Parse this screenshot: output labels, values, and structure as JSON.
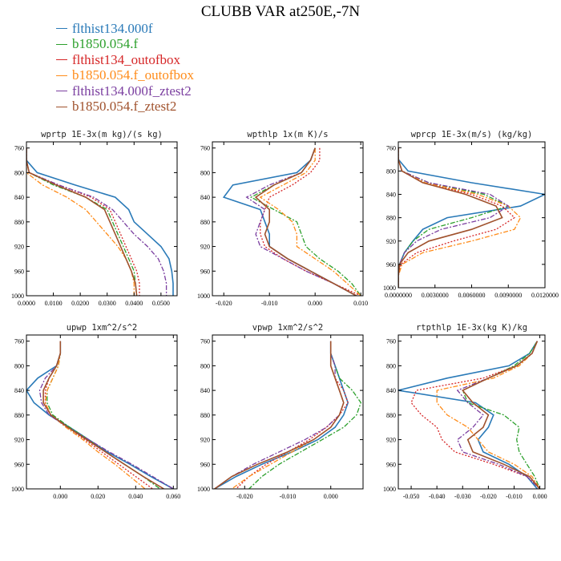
{
  "title": "CLUBB VAR at250E,-7N",
  "legend": [
    {
      "name": "flthist134.000f",
      "color": "#2a7ab8",
      "dash": "solid"
    },
    {
      "name": "b1850.054.f",
      "color": "#2ca02c",
      "dash": "solid"
    },
    {
      "name": "flthist134_outofbox",
      "color": "#d62728",
      "dash": "solid"
    },
    {
      "name": "b1850.054.f_outofbox",
      "color": "#ff8c1a",
      "dash": "solid"
    },
    {
      "name": "flthist134.000f_ztest2",
      "color": "#7b3fa0",
      "dash": "solid"
    },
    {
      "name": "b1850.054.f_ztest2",
      "color": "#a0522d",
      "dash": "solid"
    }
  ],
  "series_styles": [
    {
      "color": "#2a7ab8",
      "dash": "",
      "width": 1.6
    },
    {
      "color": "#2ca02c",
      "dash": "6,2,2,2",
      "width": 1.3
    },
    {
      "color": "#d62728",
      "dash": "2,2",
      "width": 1.3
    },
    {
      "color": "#ff8c1a",
      "dash": "6,2,2,2",
      "width": 1.3
    },
    {
      "color": "#7b3fa0",
      "dash": "6,2,2,2",
      "width": 1.3
    },
    {
      "color": "#a0522d",
      "dash": "",
      "width": 1.6
    }
  ],
  "chart_data": [
    {
      "type": "line",
      "title": "wprtp  1E-3x(m kg)/(s kg)",
      "xlim": [
        0,
        0.056
      ],
      "ylim": [
        1000,
        750
      ],
      "xticks": [
        0,
        0.01,
        0.02,
        0.03,
        0.04,
        0.05
      ],
      "xtick_labels": [
        "0.0000",
        "0.0100",
        "0.0200",
        "0.0300",
        "0.0400",
        "0.0500"
      ],
      "yticks": [
        760,
        800,
        840,
        880,
        920,
        960,
        1000
      ],
      "y": [
        760,
        780,
        800,
        820,
        840,
        860,
        880,
        900,
        920,
        940,
        960,
        980,
        1000
      ],
      "series": [
        {
          "values": [
            0,
            0,
            0.004,
            0.018,
            0.033,
            0.038,
            0.04,
            0.045,
            0.05,
            0.053,
            0.054,
            0.0545,
            0.0545
          ]
        },
        {
          "values": [
            0,
            0,
            0.001,
            0.01,
            0.022,
            0.03,
            0.032,
            0.034,
            0.036,
            0.038,
            0.04,
            0.0405,
            0.041
          ]
        },
        {
          "values": [
            0,
            0,
            0.001,
            0.012,
            0.024,
            0.031,
            0.033,
            0.035,
            0.037,
            0.039,
            0.041,
            0.042,
            0.042
          ]
        },
        {
          "values": [
            0,
            0,
            0.0,
            0.006,
            0.015,
            0.022,
            0.026,
            0.03,
            0.034,
            0.037,
            0.039,
            0.04,
            0.04
          ]
        },
        {
          "values": [
            0,
            0,
            0.001,
            0.012,
            0.025,
            0.032,
            0.036,
            0.04,
            0.045,
            0.049,
            0.051,
            0.052,
            0.052
          ]
        },
        {
          "values": [
            0,
            0,
            0.001,
            0.011,
            0.022,
            0.029,
            0.031,
            0.033,
            0.035,
            0.037,
            0.039,
            0.0405,
            0.041
          ]
        }
      ]
    },
    {
      "type": "line",
      "title": "wpthlp  1x(m K)/s",
      "xlim": [
        -0.0225,
        0.0105
      ],
      "ylim": [
        1000,
        750
      ],
      "xticks": [
        -0.02,
        -0.01,
        0.0,
        0.01
      ],
      "xtick_labels": [
        "-0.020",
        "-0.010",
        "0.000",
        "0.010"
      ],
      "yticks": [
        760,
        800,
        840,
        880,
        920,
        960,
        1000
      ],
      "y": [
        760,
        780,
        800,
        820,
        840,
        860,
        880,
        900,
        920,
        940,
        960,
        980,
        1000
      ],
      "series": [
        {
          "values": [
            0.0,
            -0.001,
            -0.004,
            -0.018,
            -0.02,
            -0.012,
            -0.011,
            -0.01,
            -0.01,
            -0.006,
            -0.001,
            0.004,
            0.009
          ]
        },
        {
          "values": [
            0.0,
            -0.001,
            -0.003,
            -0.009,
            -0.014,
            -0.009,
            -0.004,
            -0.003,
            -0.002,
            0.001,
            0.005,
            0.008,
            0.01
          ]
        },
        {
          "values": [
            0.001,
            0.001,
            -0.001,
            -0.005,
            -0.01,
            -0.011,
            -0.012,
            -0.012,
            -0.011,
            -0.007,
            -0.002,
            0.004,
            0.01
          ]
        },
        {
          "values": [
            0.0,
            0.0,
            -0.002,
            -0.007,
            -0.012,
            -0.008,
            -0.005,
            -0.004,
            -0.004,
            0.0,
            0.004,
            0.007,
            0.01
          ]
        },
        {
          "values": [
            0.0,
            -0.001,
            -0.003,
            -0.01,
            -0.015,
            -0.011,
            -0.012,
            -0.013,
            -0.012,
            -0.007,
            -0.002,
            0.004,
            0.009
          ]
        },
        {
          "values": [
            0.0,
            -0.001,
            -0.003,
            -0.009,
            -0.013,
            -0.01,
            -0.01,
            -0.011,
            -0.01,
            -0.006,
            -0.001,
            0.004,
            0.009
          ]
        }
      ]
    },
    {
      "type": "line",
      "title": "wprcp  1E-3x(m/s) (kg/kg)",
      "xlim": [
        0,
        0.012
      ],
      "ylim": [
        1000,
        750
      ],
      "xticks": [
        0,
        0.003,
        0.006,
        0.009,
        0.012
      ],
      "xtick_labels": [
        "0.0000000",
        "0.0030000",
        "0.0060000",
        "0.0090000",
        "0.0120000"
      ],
      "yticks": [
        760,
        800,
        840,
        880,
        920,
        960,
        1000
      ],
      "y": [
        760,
        780,
        800,
        820,
        840,
        860,
        880,
        900,
        920,
        940,
        960,
        980,
        1000
      ],
      "series": [
        {
          "values": [
            0,
            0.0,
            0.0008,
            0.006,
            0.012,
            0.01,
            0.004,
            0.002,
            0.0012,
            0.0005,
            0.0001,
            0,
            0
          ]
        },
        {
          "values": [
            0,
            0.0,
            0.0003,
            0.0025,
            0.007,
            0.009,
            0.006,
            0.0025,
            0.0012,
            0.0005,
            0.0001,
            0,
            0
          ]
        },
        {
          "values": [
            0,
            0.0,
            0.0003,
            0.002,
            0.006,
            0.0085,
            0.0095,
            0.008,
            0.0045,
            0.0015,
            0.0002,
            0,
            0
          ]
        },
        {
          "values": [
            0,
            0.0,
            0.0003,
            0.0022,
            0.0065,
            0.009,
            0.01,
            0.0095,
            0.006,
            0.002,
            0.0003,
            0,
            0
          ]
        },
        {
          "values": [
            0,
            0.0,
            0.0003,
            0.0025,
            0.0075,
            0.009,
            0.0075,
            0.0035,
            0.0015,
            0.0005,
            0.0001,
            0,
            0
          ]
        },
        {
          "values": [
            0,
            0.0,
            0.0003,
            0.002,
            0.0055,
            0.008,
            0.0085,
            0.006,
            0.0025,
            0.0008,
            0.0001,
            0,
            0
          ]
        }
      ]
    },
    {
      "type": "line",
      "title": "upwp  1xm^2/s^2",
      "xlim": [
        -0.018,
        0.062
      ],
      "ylim": [
        1000,
        750
      ],
      "xticks": [
        0,
        0.02,
        0.04,
        0.06
      ],
      "xtick_labels": [
        "0.000",
        "0.020",
        "0.040",
        "0.060"
      ],
      "yticks": [
        760,
        800,
        840,
        880,
        920,
        960,
        1000
      ],
      "y": [
        760,
        780,
        800,
        820,
        840,
        860,
        880,
        900,
        920,
        940,
        960,
        980,
        1000
      ],
      "series": [
        {
          "values": [
            0.0,
            0.0,
            -0.002,
            -0.012,
            -0.018,
            -0.014,
            -0.006,
            0.005,
            0.015,
            0.025,
            0.037,
            0.048,
            0.06
          ]
        },
        {
          "values": [
            0.0,
            0.0,
            -0.001,
            -0.004,
            -0.007,
            -0.007,
            -0.004,
            0.005,
            0.015,
            0.024,
            0.034,
            0.044,
            0.053
          ]
        },
        {
          "values": [
            0.0,
            0.0,
            -0.002,
            -0.006,
            -0.008,
            -0.008,
            -0.005,
            0.004,
            0.013,
            0.022,
            0.031,
            0.04,
            0.049
          ]
        },
        {
          "values": [
            0.0,
            0.0,
            -0.001,
            -0.004,
            -0.007,
            -0.008,
            -0.005,
            0.003,
            0.012,
            0.02,
            0.029,
            0.037,
            0.045
          ]
        },
        {
          "values": [
            0.0,
            0.0,
            -0.002,
            -0.008,
            -0.011,
            -0.01,
            -0.006,
            0.004,
            0.015,
            0.026,
            0.038,
            0.049,
            0.06
          ]
        },
        {
          "values": [
            0.0,
            0.0,
            -0.002,
            -0.006,
            -0.009,
            -0.009,
            -0.005,
            0.004,
            0.014,
            0.024,
            0.034,
            0.044,
            0.055
          ]
        }
      ]
    },
    {
      "type": "line",
      "title": "vpwp  1xm^2/s^2",
      "xlim": [
        -0.0275,
        0.0075
      ],
      "ylim": [
        1000,
        750
      ],
      "xticks": [
        -0.02,
        -0.01,
        0.0
      ],
      "xtick_labels": [
        "-0.020",
        "-0.010",
        "0.000"
      ],
      "yticks": [
        760,
        800,
        840,
        880,
        920,
        960,
        1000
      ],
      "y": [
        760,
        780,
        800,
        820,
        840,
        860,
        880,
        900,
        920,
        940,
        960,
        980,
        1000
      ],
      "series": [
        {
          "values": [
            0.0,
            0.0,
            0.001,
            0.002,
            0.003,
            0.004,
            0.003,
            0.001,
            -0.003,
            -0.009,
            -0.016,
            -0.022,
            -0.027
          ]
        },
        {
          "values": [
            0.0,
            0.0,
            0.001,
            0.002,
            0.005,
            0.007,
            0.006,
            0.003,
            -0.002,
            -0.007,
            -0.012,
            -0.016,
            -0.019
          ]
        },
        {
          "values": [
            0.0,
            0.0,
            0.0,
            0.001,
            0.003,
            0.004,
            0.002,
            -0.001,
            -0.005,
            -0.01,
            -0.015,
            -0.019,
            -0.022
          ]
        },
        {
          "values": [
            0.0,
            0.0,
            0.0,
            0.001,
            0.002,
            0.003,
            0.002,
            0.0,
            -0.004,
            -0.009,
            -0.014,
            -0.019,
            -0.023
          ]
        },
        {
          "values": [
            0.0,
            0.0,
            0.001,
            0.001,
            0.002,
            0.003,
            0.002,
            -0.001,
            -0.006,
            -0.012,
            -0.018,
            -0.023,
            -0.027
          ]
        },
        {
          "values": [
            0.0,
            0.0,
            0.0,
            0.001,
            0.002,
            0.003,
            0.002,
            0.0,
            -0.004,
            -0.01,
            -0.017,
            -0.023,
            -0.027
          ]
        }
      ]
    },
    {
      "type": "line",
      "title": "rtpthlp  1E-3x(kg K)/kg",
      "xlim": [
        -0.055,
        0.002
      ],
      "ylim": [
        1000,
        750
      ],
      "xticks": [
        -0.05,
        -0.04,
        -0.03,
        -0.02,
        -0.01,
        0.0
      ],
      "xtick_labels": [
        "-0.050",
        "-0.040",
        "-0.030",
        "-0.020",
        "-0.010",
        "0.000"
      ],
      "yticks": [
        760,
        800,
        840,
        880,
        920,
        960,
        1000
      ],
      "y": [
        760,
        780,
        800,
        820,
        840,
        860,
        880,
        900,
        920,
        940,
        960,
        980,
        1000
      ],
      "series": [
        {
          "values": [
            -0.001,
            -0.004,
            -0.012,
            -0.036,
            -0.055,
            -0.025,
            -0.018,
            -0.02,
            -0.024,
            -0.022,
            -0.012,
            -0.005,
            -0.001
          ]
        },
        {
          "values": [
            -0.001,
            -0.004,
            -0.01,
            -0.02,
            -0.03,
            -0.028,
            -0.014,
            -0.008,
            -0.009,
            -0.008,
            -0.005,
            -0.002,
            0.0
          ]
        },
        {
          "values": [
            -0.001,
            -0.003,
            -0.009,
            -0.022,
            -0.048,
            -0.05,
            -0.046,
            -0.04,
            -0.038,
            -0.033,
            -0.018,
            -0.005,
            0.0
          ]
        },
        {
          "values": [
            -0.001,
            -0.003,
            -0.008,
            -0.018,
            -0.04,
            -0.04,
            -0.036,
            -0.028,
            -0.024,
            -0.02,
            -0.01,
            -0.003,
            0.0
          ]
        },
        {
          "values": [
            -0.001,
            -0.003,
            -0.009,
            -0.02,
            -0.032,
            -0.028,
            -0.022,
            -0.026,
            -0.032,
            -0.03,
            -0.016,
            -0.005,
            0.0
          ]
        },
        {
          "values": [
            -0.001,
            -0.003,
            -0.009,
            -0.02,
            -0.03,
            -0.026,
            -0.02,
            -0.022,
            -0.028,
            -0.026,
            -0.014,
            -0.004,
            0.0
          ]
        }
      ]
    }
  ]
}
